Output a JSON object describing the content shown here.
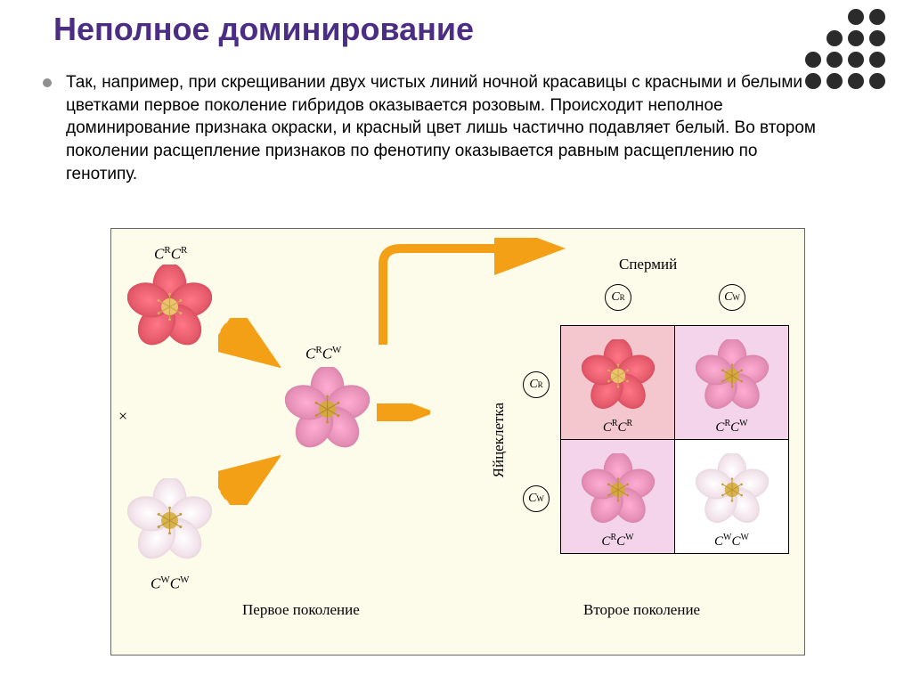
{
  "title": {
    "text": "Неполное доминирование",
    "color": "#4b2e83"
  },
  "dots": {
    "color": "#2b2b2b"
  },
  "bullet": {
    "color": "#8f8f8f"
  },
  "paragraph": {
    "text": "Так, например, при скрещивании двух чистых линий ночной красавицы с красными и белыми цветками первое поколение гибридов оказывается розовым. Происходит неполное доминирование признака окраски, и красный цвет лишь частично подавляет белый. Во втором поколении расщепление признаков по фенотипу оказывается равным расщеплению по генотипу.",
    "color": "#000000"
  },
  "diagram": {
    "background": "#fdfceb",
    "flowers": {
      "red": {
        "petal": "#e45a6a",
        "center": "#e9c46a"
      },
      "pink": {
        "petal": "#e58fb6",
        "center": "#d4a843"
      },
      "white": {
        "petal": "#f2e2ea",
        "center": "#d8b34e"
      }
    },
    "arrow_color": "#f4a016",
    "labels": {
      "first_gen": "Первое поколение",
      "second_gen": "Второе поколение",
      "sperm": "Спермий",
      "egg": "Яйцеклетка",
      "cross": "×"
    },
    "alleles": {
      "R": "R",
      "W": "W",
      "base": "C"
    },
    "punnett": {
      "cell_bg": {
        "RR": "#f4c6cd",
        "RW": "#f3d4ea",
        "WW": "#ffffff"
      }
    }
  }
}
